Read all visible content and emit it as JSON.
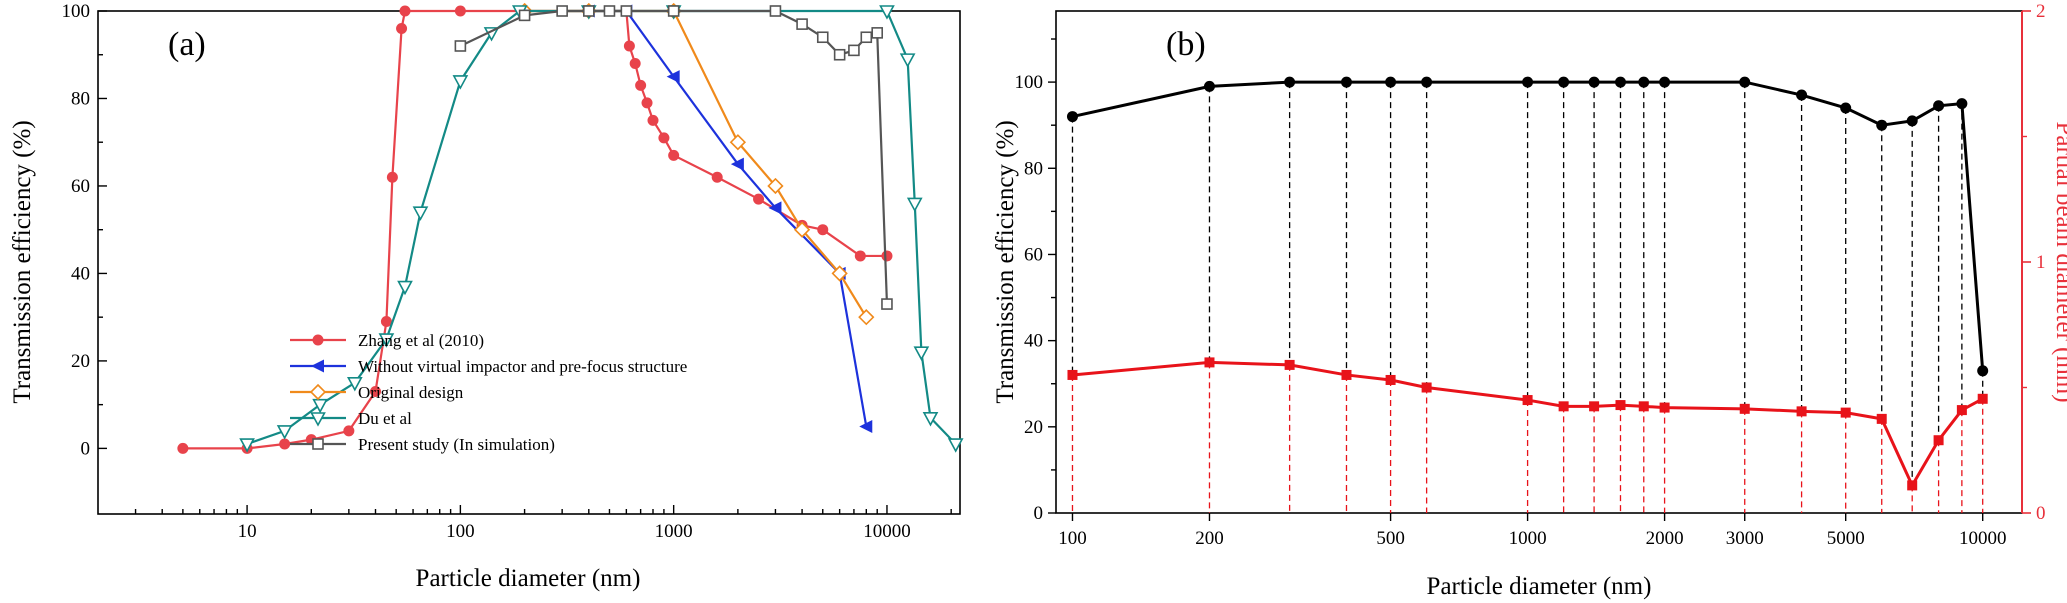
{
  "chart_data": [
    {
      "panel": "(a)",
      "type": "line",
      "xscale": "log",
      "xlim": [
        2,
        22000
      ],
      "ylim": [
        -15,
        100
      ],
      "xlabel": "Particle diameter (nm)",
      "ylabel": "Transmission efficiency (%)",
      "xticks": [
        10,
        100,
        1000,
        10000
      ],
      "yticks": [
        0,
        20,
        40,
        60,
        80,
        100
      ],
      "legend_position": "lower-left",
      "series": [
        {
          "name": "Zhang et al (2010)",
          "color": "#e8434b",
          "marker": "circle",
          "x": [
            5,
            10,
            15,
            20,
            30,
            40,
            45,
            48,
            53,
            55,
            100,
            200,
            300,
            400,
            500,
            600,
            620,
            660,
            700,
            750,
            800,
            900,
            1000,
            1600,
            2500,
            4000,
            5000,
            7500,
            10000
          ],
          "y": [
            0,
            0,
            1,
            2,
            4,
            13,
            29,
            62,
            96,
            100,
            100,
            100,
            100,
            100,
            100,
            100,
            92,
            88,
            83,
            79,
            75,
            71,
            67,
            62,
            57,
            51,
            50,
            44,
            44
          ]
        },
        {
          "name": "Without virtual impactor and pre-focus structure",
          "color": "#1d32dc",
          "marker": "triangle-left",
          "x": [
            400,
            600,
            1000,
            2000,
            3000,
            6000,
            8000
          ],
          "y": [
            100,
            100,
            85,
            65,
            55,
            40,
            5
          ]
        },
        {
          "name": "Original design",
          "color": "#f08a1b",
          "marker": "diamond-open",
          "x": [
            200,
            400,
            1000,
            2000,
            3000,
            4000,
            6000,
            8000
          ],
          "y": [
            100,
            100,
            100,
            70,
            60,
            50,
            40,
            30
          ]
        },
        {
          "name": "Du et al",
          "color": "#138a86",
          "marker": "triangle-down-open",
          "x": [
            10,
            15,
            22,
            32,
            45,
            55,
            65,
            100,
            140,
            190,
            400,
            1000,
            10000,
            12500,
            13500,
            14500,
            16000,
            21000
          ],
          "y": [
            1,
            4,
            10,
            15,
            25,
            37,
            54,
            84,
            95,
            100,
            100,
            100,
            100,
            89,
            56,
            22,
            7,
            1
          ]
        },
        {
          "name": "Present study (In simulation)",
          "color": "#555555",
          "marker": "square-open",
          "x": [
            100,
            200,
            300,
            400,
            500,
            600,
            1000,
            3000,
            4000,
            5000,
            6000,
            7000,
            8000,
            9000,
            10000
          ],
          "y": [
            92,
            99,
            100,
            100,
            100,
            100,
            100,
            100,
            97,
            94,
            90,
            91,
            94,
            95,
            33
          ]
        }
      ]
    },
    {
      "panel": "(b)",
      "type": "line",
      "xscale": "log",
      "xlim": [
        92,
        12200
      ],
      "categories": [
        100,
        200,
        300,
        400,
        500,
        600,
        1000,
        1200,
        1400,
        1600,
        1800,
        2000,
        3000,
        4000,
        5000,
        6000,
        7000,
        8000,
        9000,
        10000
      ],
      "xlabel": "Particle diameter (nm)",
      "ylabel": "Transmission efficiency (%)",
      "ylabel_right": "Partial beam diameter (mm)",
      "xticks": [
        "100",
        "200",
        "500",
        "1000",
        "2000",
        "3000",
        "5000",
        "10000"
      ],
      "yticks": [
        0,
        20,
        40,
        60,
        80,
        100
      ],
      "ylim": [
        0,
        116.5
      ],
      "yticks_right": [
        0,
        1,
        2
      ],
      "ylim_right": [
        0,
        2
      ],
      "right_axis_color": "#e8303a",
      "series": [
        {
          "name": "Transmission efficiency",
          "axis": "left",
          "color": "#000000",
          "marker": "circle",
          "values": [
            92,
            99,
            100,
            100,
            100,
            100,
            100,
            100,
            100,
            100,
            100,
            100,
            100,
            97,
            94,
            90,
            91,
            94.5,
            95,
            33
          ]
        },
        {
          "name": "Partial beam diameter",
          "axis": "right",
          "color": "#e8131a",
          "marker": "square",
          "values": [
            0.55,
            0.6,
            0.59,
            0.55,
            0.53,
            0.5,
            0.45,
            0.425,
            0.425,
            0.43,
            0.425,
            0.42,
            0.415,
            0.405,
            0.4,
            0.375,
            0.11,
            0.29,
            0.41,
            0.455
          ]
        }
      ]
    }
  ]
}
